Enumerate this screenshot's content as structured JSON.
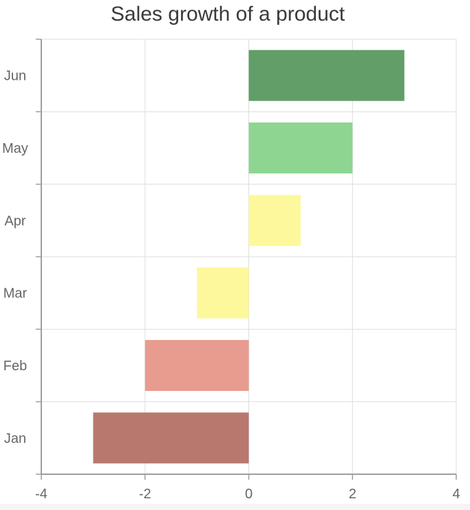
{
  "chart_data": {
    "type": "bar",
    "orientation": "horizontal",
    "title": "Sales growth of a product",
    "xlabel": "",
    "ylabel": "",
    "categories": [
      "Jan",
      "Feb",
      "Mar",
      "Apr",
      "May",
      "Jun"
    ],
    "values": [
      -3,
      -2,
      -1,
      1,
      2,
      3
    ],
    "bar_colors": [
      "#b8786e",
      "#e89c8f",
      "#fdf89b",
      "#fdf89b",
      "#8ed592",
      "#629e68"
    ],
    "xlim": [
      -4,
      4
    ],
    "x_ticks": [
      "-4",
      "-2",
      "0",
      "2",
      "4"
    ],
    "grid": true,
    "legend": "none"
  }
}
